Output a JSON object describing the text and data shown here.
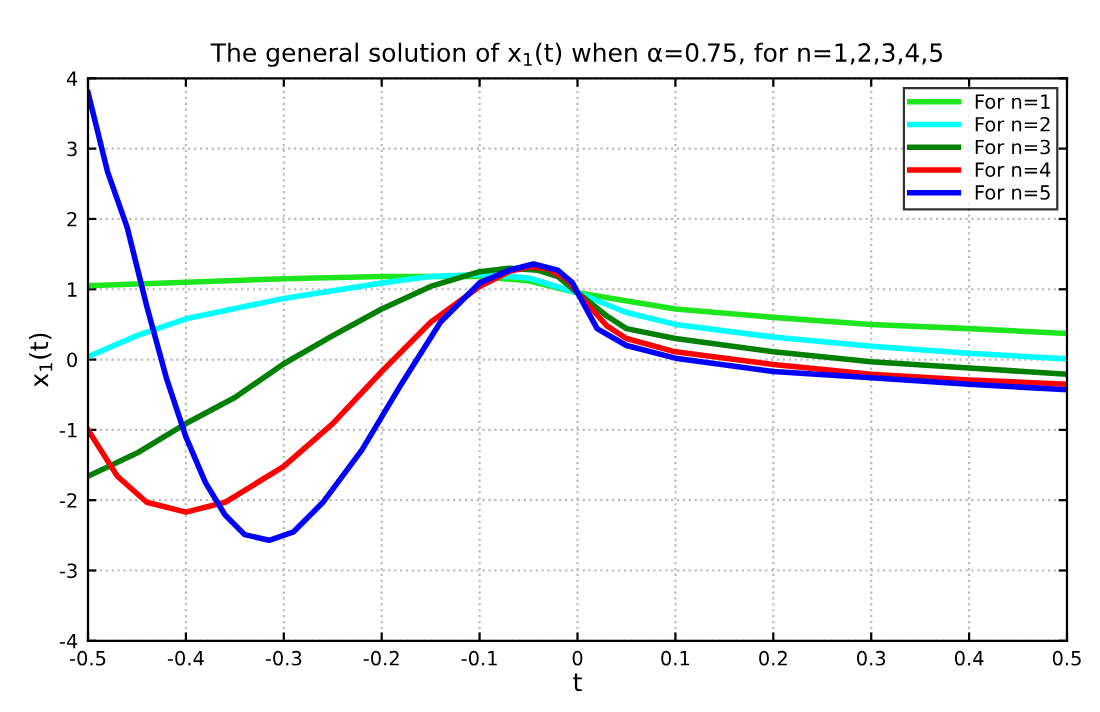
{
  "chart_data": {
    "type": "line",
    "title": "The general solution of x$_{1}$(t) when α=0.75, for n=1,2,3,4,5",
    "xlabel": "t",
    "ylabel": "x$_{1}$(t)",
    "xlim": [
      -0.5,
      0.5
    ],
    "xticks": [
      -0.5,
      -0.4,
      -0.3,
      -0.2,
      -0.1,
      0,
      0.1,
      0.2,
      0.3,
      0.4,
      0.5
    ],
    "ylim": [
      -4,
      4
    ],
    "yticks": [
      -4,
      -3,
      -2,
      -1,
      0,
      1,
      2,
      3,
      4
    ],
    "grid": true,
    "legend": "top right",
    "line_style": "solid",
    "marker": "none",
    "series": [
      {
        "name": "For n=1",
        "color": "#1ee61e",
        "x": [
          -0.5,
          -0.4,
          -0.3,
          -0.2,
          -0.1,
          -0.05,
          0,
          0.1,
          0.2,
          0.3,
          0.4,
          0.5
        ],
        "values": [
          1.05,
          1.1,
          1.15,
          1.18,
          1.18,
          1.12,
          0.95,
          0.72,
          0.6,
          0.5,
          0.44,
          0.37
        ]
      },
      {
        "name": "For n=2",
        "color": "#00ffff",
        "x": [
          -0.5,
          -0.45,
          -0.4,
          -0.3,
          -0.2,
          -0.15,
          -0.1,
          -0.05,
          0,
          0.05,
          0.1,
          0.2,
          0.3,
          0.4,
          0.5
        ],
        "values": [
          0.04,
          0.34,
          0.58,
          0.87,
          1.09,
          1.18,
          1.21,
          1.16,
          0.95,
          0.67,
          0.5,
          0.32,
          0.19,
          0.09,
          0.01
        ]
      },
      {
        "name": "For n=3",
        "color": "#007f00",
        "x": [
          -0.5,
          -0.45,
          -0.4,
          -0.35,
          -0.3,
          -0.25,
          -0.2,
          -0.15,
          -0.1,
          -0.07,
          -0.04,
          -0.02,
          0,
          0.03,
          0.05,
          0.1,
          0.2,
          0.3,
          0.4,
          0.5
        ],
        "values": [
          -1.66,
          -1.33,
          -0.91,
          -0.54,
          -0.06,
          0.34,
          0.72,
          1.04,
          1.25,
          1.3,
          1.27,
          1.18,
          0.95,
          0.62,
          0.44,
          0.3,
          0.11,
          -0.03,
          -0.12,
          -0.21
        ]
      },
      {
        "name": "For n=4",
        "color": "#ff0000",
        "x": [
          -0.5,
          -0.47,
          -0.44,
          -0.4,
          -0.36,
          -0.3,
          -0.25,
          -0.2,
          -0.15,
          -0.1,
          -0.07,
          -0.05,
          -0.03,
          -0.01,
          0,
          0.03,
          0.05,
          0.1,
          0.2,
          0.3,
          0.4,
          0.5
        ],
        "values": [
          -1.0,
          -1.66,
          -2.03,
          -2.17,
          -2.03,
          -1.52,
          -0.91,
          -0.17,
          0.53,
          1.04,
          1.25,
          1.32,
          1.29,
          1.13,
          0.95,
          0.48,
          0.3,
          0.11,
          -0.07,
          -0.21,
          -0.29,
          -0.35
        ]
      },
      {
        "name": "For n=5",
        "color": "#0000ff",
        "x": [
          -0.5,
          -0.48,
          -0.46,
          -0.44,
          -0.42,
          -0.4,
          -0.38,
          -0.36,
          -0.34,
          -0.315,
          -0.29,
          -0.26,
          -0.22,
          -0.18,
          -0.14,
          -0.1,
          -0.07,
          -0.045,
          -0.02,
          -0.005,
          0,
          0.02,
          0.05,
          0.1,
          0.2,
          0.3,
          0.4,
          0.5
        ],
        "values": [
          3.8,
          2.67,
          1.88,
          0.76,
          -0.26,
          -1.1,
          -1.75,
          -2.21,
          -2.49,
          -2.57,
          -2.45,
          -2.03,
          -1.28,
          -0.35,
          0.53,
          1.09,
          1.27,
          1.36,
          1.27,
          1.09,
          0.95,
          0.44,
          0.2,
          0.02,
          -0.17,
          -0.26,
          -0.35,
          -0.43
        ]
      }
    ]
  }
}
